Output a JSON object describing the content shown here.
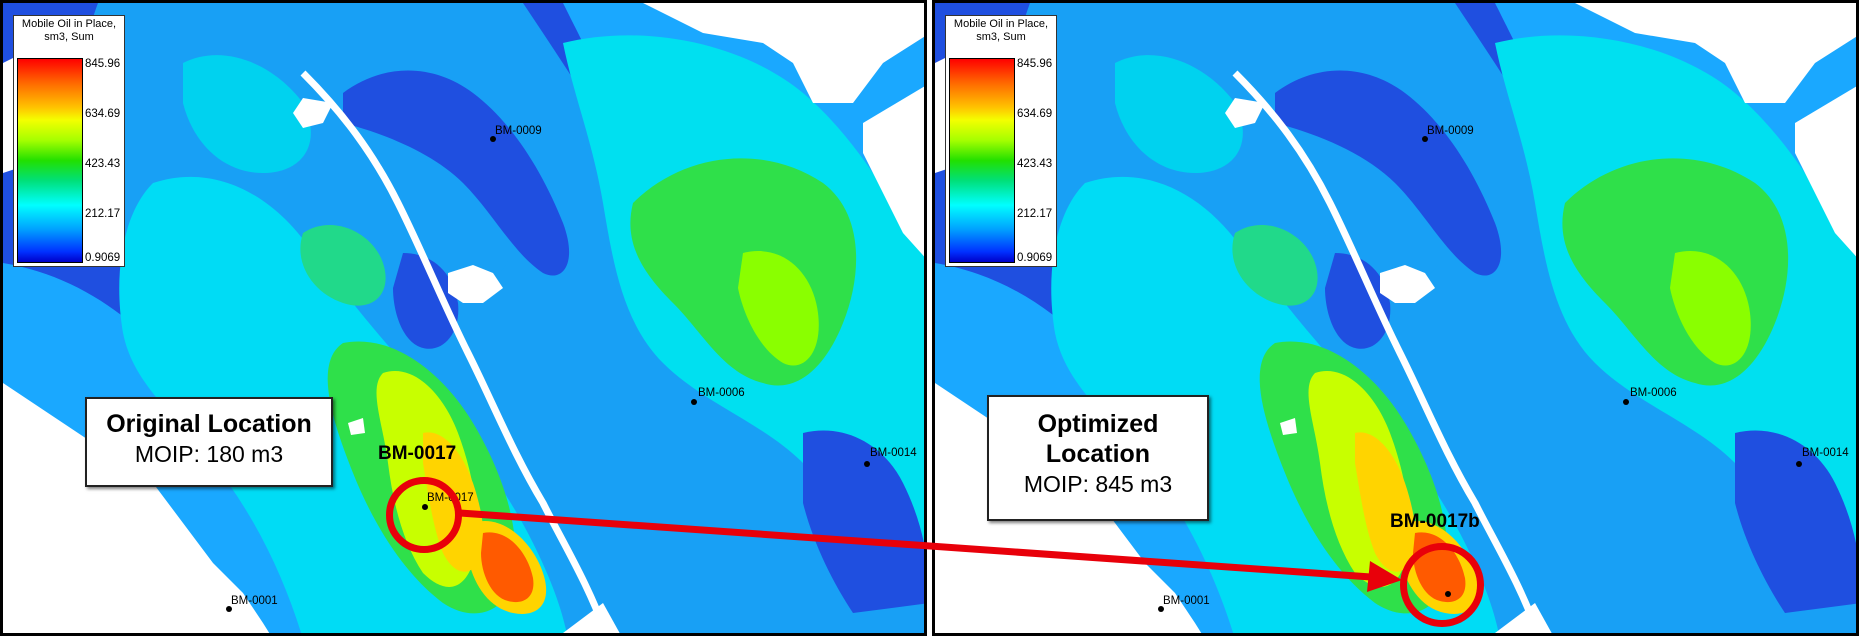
{
  "legend": {
    "title_line1": "Mobile Oil in Place,",
    "title_line2": "sm3, Sum",
    "ticks": [
      "845.96",
      "634.69",
      "423.43",
      "212.17",
      "0.9069"
    ]
  },
  "wells": {
    "bm0009": "BM-0009",
    "bm0006": "BM-0006",
    "bm0014": "BM-0014",
    "bm0001": "BM-0001",
    "bm0017": "BM-0017"
  },
  "left_panel": {
    "callout_title": "Original Location",
    "callout_value": "MOIP: 180 m3",
    "highlight_label": "BM-0017"
  },
  "right_panel": {
    "callout_title_line1": "Optimized",
    "callout_title_line2": "Location",
    "callout_value": "MOIP: 845 m3",
    "highlight_label": "BM-0017b"
  },
  "colors": {
    "arrow": "#e8000a",
    "ring": "#e8000a",
    "deep_blue": "#1f4fe0",
    "cyan": "#00e5ff",
    "green": "#39e000",
    "peak": "#ff5a00"
  }
}
